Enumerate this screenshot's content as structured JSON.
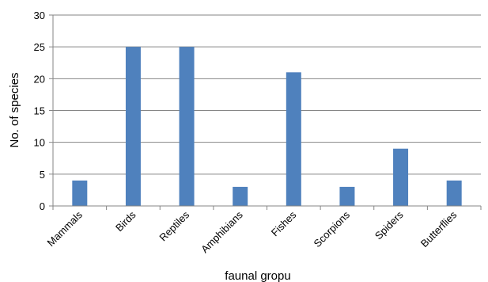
{
  "chart_data": {
    "type": "bar",
    "title": "",
    "xlabel": "faunal gropu",
    "ylabel": "No. of species",
    "categories": [
      "Mammals",
      "Birds",
      "Reptiles",
      "Amphibians",
      "Fishes",
      "Scorpions",
      "Spiders",
      "Butterflies"
    ],
    "values": [
      4,
      25,
      25,
      3,
      21,
      3,
      9,
      4
    ],
    "ylim": [
      0,
      30
    ],
    "yticks": [
      0,
      5,
      10,
      15,
      20,
      25,
      30
    ],
    "grid": true,
    "legend": "none",
    "colors": {
      "bar": "#4f81bd",
      "grid": "#868686",
      "axis": "#868686"
    }
  }
}
